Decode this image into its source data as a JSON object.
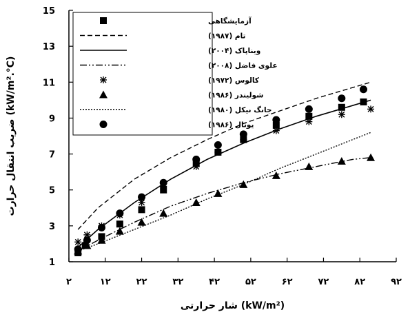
{
  "chart_data": {
    "type": "line",
    "title": "",
    "xlabel": "شار حرارتی (kW/m²)",
    "ylabel": "ضریب انتقال حرارت (kW/m².°C)",
    "xlim": [
      2,
      92
    ],
    "ylim": [
      1,
      15
    ],
    "x_ticks": [
      {
        "value": 2,
        "label": "۲"
      },
      {
        "value": 12,
        "label": "۱۲"
      },
      {
        "value": 22,
        "label": "۲۲"
      },
      {
        "value": 32,
        "label": "۳۲"
      },
      {
        "value": 42,
        "label": "۴۲"
      },
      {
        "value": 52,
        "label": "۵۲"
      },
      {
        "value": 62,
        "label": "۶۲"
      },
      {
        "value": 72,
        "label": "۷۲"
      },
      {
        "value": 82,
        "label": "۸۲"
      },
      {
        "value": 92,
        "label": "۹۲"
      }
    ],
    "y_ticks": [
      {
        "value": 1,
        "label": "1"
      },
      {
        "value": 3,
        "label": "3"
      },
      {
        "value": 5,
        "label": "5"
      },
      {
        "value": 7,
        "label": "7"
      },
      {
        "value": 9,
        "label": "9"
      },
      {
        "value": 11,
        "label": "11"
      },
      {
        "value": 13,
        "label": "13"
      },
      {
        "value": 15,
        "label": "15"
      }
    ],
    "grid": false,
    "legend_position": "top-left",
    "series": [
      {
        "name": "آزمایشگاهی",
        "style": "markers",
        "marker": "square",
        "points": [
          [
            4.5,
            1.5
          ],
          [
            6.5,
            1.9
          ],
          [
            11,
            2.4
          ],
          [
            16,
            3.1
          ],
          [
            22,
            3.9
          ],
          [
            28,
            5.0
          ],
          [
            37,
            6.5
          ],
          [
            43,
            7.1
          ],
          [
            50,
            7.8
          ],
          [
            59,
            8.6
          ],
          [
            68,
            9.1
          ],
          [
            77,
            9.6
          ],
          [
            83,
            9.9
          ]
        ]
      },
      {
        "name": "تام (۱۹۸۷)",
        "style": "line",
        "dash": "dashed",
        "points": [
          [
            4.5,
            2.8
          ],
          [
            10,
            4.0
          ],
          [
            20,
            5.6
          ],
          [
            30,
            6.8
          ],
          [
            40,
            7.8
          ],
          [
            50,
            8.7
          ],
          [
            60,
            9.4
          ],
          [
            70,
            10.1
          ],
          [
            80,
            10.7
          ],
          [
            85,
            11.0
          ]
        ]
      },
      {
        "name": "ویناپاک (۲۰۰۴)",
        "style": "line",
        "dash": "solid",
        "points": [
          [
            4.5,
            1.8
          ],
          [
            10,
            2.8
          ],
          [
            20,
            4.3
          ],
          [
            30,
            5.6
          ],
          [
            40,
            6.7
          ],
          [
            50,
            7.6
          ],
          [
            60,
            8.4
          ],
          [
            70,
            9.1
          ],
          [
            80,
            9.7
          ],
          [
            85,
            10.0
          ]
        ]
      },
      {
        "name": "علوی فاضل (۲۰۰۸)",
        "style": "line",
        "dash": "dash-dot",
        "points": [
          [
            4.5,
            1.6
          ],
          [
            10,
            2.2
          ],
          [
            20,
            3.2
          ],
          [
            30,
            4.1
          ],
          [
            40,
            4.8
          ],
          [
            50,
            5.4
          ],
          [
            60,
            5.9
          ],
          [
            70,
            6.3
          ],
          [
            80,
            6.7
          ],
          [
            85,
            6.8
          ]
        ]
      },
      {
        "name": "کالوس (۱۹۷۲)",
        "style": "markers",
        "marker": "asterisk",
        "points": [
          [
            4.5,
            2.1
          ],
          [
            7,
            2.5
          ],
          [
            11,
            3.0
          ],
          [
            16,
            3.6
          ],
          [
            22,
            4.3
          ],
          [
            28,
            5.2
          ],
          [
            37,
            6.3
          ],
          [
            43,
            7.1
          ],
          [
            50,
            7.8
          ],
          [
            59,
            8.3
          ],
          [
            68,
            8.8
          ],
          [
            77,
            9.2
          ],
          [
            85,
            9.5
          ]
        ]
      },
      {
        "name": "شولیندر (۱۹۸۶)",
        "style": "markers",
        "marker": "triangle",
        "points": [
          [
            4.5,
            1.6
          ],
          [
            7,
            1.9
          ],
          [
            11,
            2.2
          ],
          [
            16,
            2.7
          ],
          [
            22,
            3.2
          ],
          [
            28,
            3.7
          ],
          [
            37,
            4.3
          ],
          [
            43,
            4.8
          ],
          [
            50,
            5.3
          ],
          [
            59,
            5.8
          ],
          [
            68,
            6.3
          ],
          [
            77,
            6.6
          ],
          [
            85,
            6.8
          ]
        ]
      },
      {
        "name": "جانگ نیکل (۱۹۸۰)",
        "style": "line",
        "dash": "dotted",
        "points": [
          [
            4.5,
            1.6
          ],
          [
            10,
            2.0
          ],
          [
            20,
            2.8
          ],
          [
            30,
            3.6
          ],
          [
            40,
            4.5
          ],
          [
            50,
            5.3
          ],
          [
            60,
            6.2
          ],
          [
            70,
            7.0
          ],
          [
            80,
            7.8
          ],
          [
            85,
            8.2
          ]
        ]
      },
      {
        "name": "یونال (۱۹۸۶)",
        "style": "markers",
        "marker": "circle",
        "points": [
          [
            4.5,
            1.7
          ],
          [
            7,
            2.2
          ],
          [
            11,
            2.9
          ],
          [
            16,
            3.7
          ],
          [
            22,
            4.6
          ],
          [
            28,
            5.4
          ],
          [
            37,
            6.7
          ],
          [
            43,
            7.5
          ],
          [
            50,
            8.1
          ],
          [
            59,
            8.9
          ],
          [
            68,
            9.5
          ],
          [
            77,
            10.1
          ],
          [
            83,
            10.6
          ]
        ]
      }
    ]
  }
}
